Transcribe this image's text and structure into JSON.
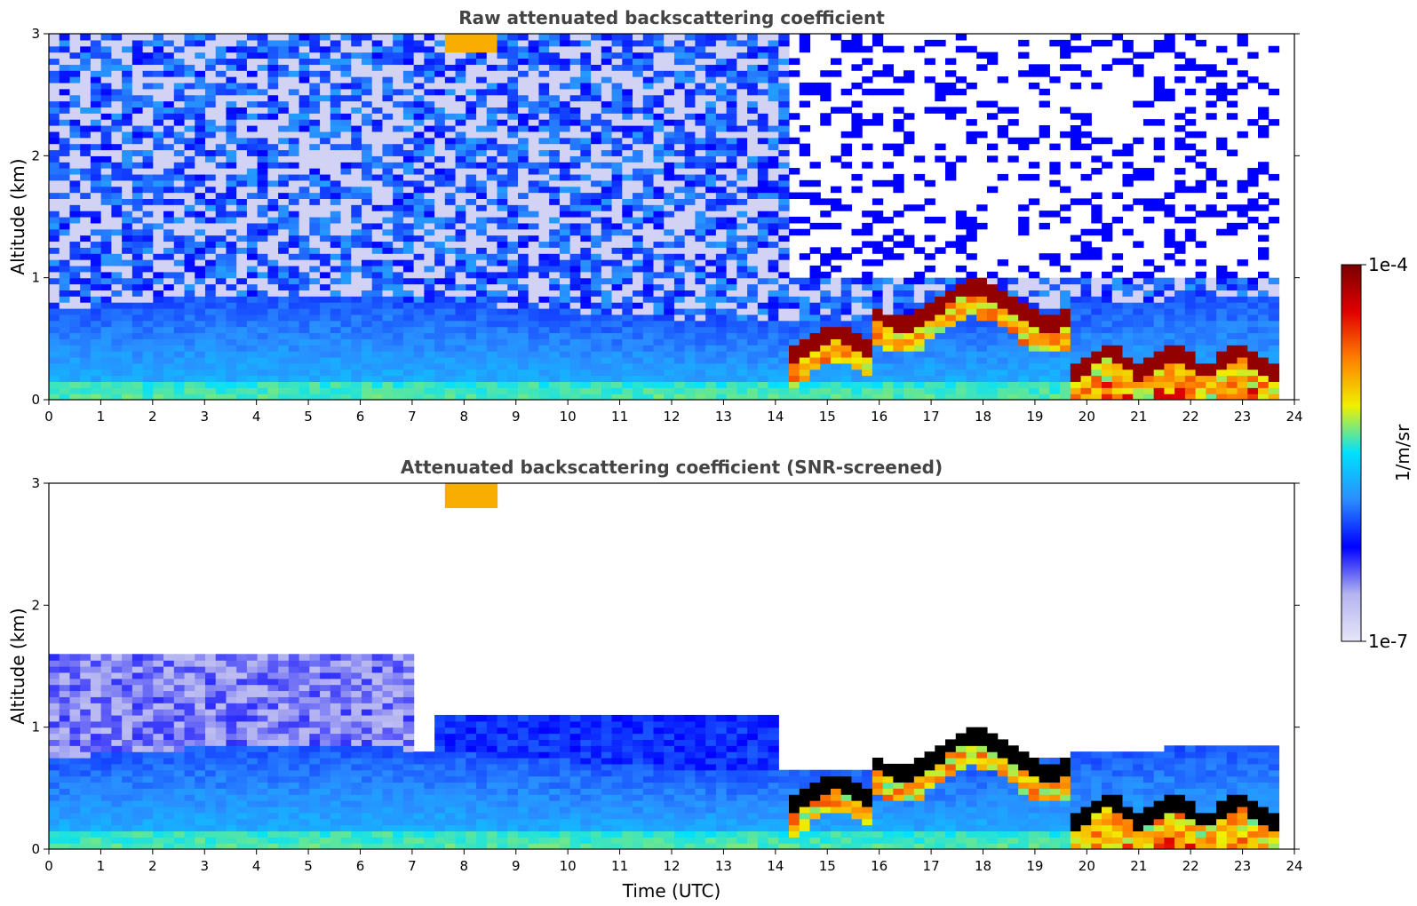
{
  "chart_data": [
    {
      "type": "heatmap",
      "title": "Raw attenuated backscattering coefficient",
      "xlabel": "",
      "ylabel": "Altitude (km)",
      "xlim": [
        0,
        24
      ],
      "ylim": [
        0,
        3
      ],
      "x_ticks": [
        "0",
        "1",
        "2",
        "3",
        "4",
        "5",
        "6",
        "7",
        "8",
        "9",
        "10",
        "11",
        "12",
        "13",
        "14",
        "15",
        "16",
        "17",
        "18",
        "19",
        "20",
        "21",
        "22",
        "23",
        "24"
      ],
      "y_ticks": [
        "0",
        "1",
        "2",
        "3"
      ],
      "data_end_time": 23.7,
      "screened": false
    },
    {
      "type": "heatmap",
      "title": "Attenuated backscattering coefficient (SNR-screened)",
      "xlabel": "Time (UTC)",
      "ylabel": "Altitude (km)",
      "xlim": [
        0,
        24
      ],
      "ylim": [
        0,
        3
      ],
      "x_ticks": [
        "0",
        "1",
        "2",
        "3",
        "4",
        "5",
        "6",
        "7",
        "8",
        "9",
        "10",
        "11",
        "12",
        "13",
        "14",
        "15",
        "16",
        "17",
        "18",
        "19",
        "20",
        "21",
        "22",
        "23",
        "24"
      ],
      "y_ticks": [
        "0",
        "1",
        "2",
        "3"
      ],
      "data_end_time": 23.7,
      "screened": true
    }
  ],
  "colorbar": {
    "label": "1/m/sr",
    "max_label": "1e-4",
    "min_label": "1e-7",
    "scale": "log",
    "colormap": [
      "#e6e6f8",
      "#b4b4f0",
      "#0000ff",
      "#2a8cff",
      "#00e0ff",
      "#f0f000",
      "#ff8000",
      "#e00000",
      "#7a0000"
    ]
  }
}
